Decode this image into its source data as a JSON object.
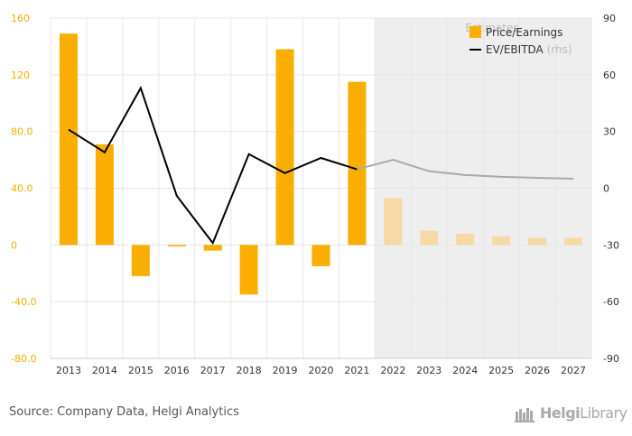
{
  "chart_data": {
    "type": "bar",
    "categories": [
      "2013",
      "2014",
      "2015",
      "2016",
      "2017",
      "2018",
      "2019",
      "2020",
      "2021",
      "2022",
      "2023",
      "2024",
      "2025",
      "2026",
      "2027"
    ],
    "estimates_start_index": 9,
    "estimates_label": "Estimates",
    "series": [
      {
        "name": "Price/Earnings",
        "type": "bar",
        "axis": "left",
        "color": "#f9ae00",
        "estimate_color": "#f6d9a4",
        "values": [
          149,
          71,
          -22,
          -1,
          -4,
          -35,
          138,
          -15,
          115,
          33,
          10,
          8,
          6,
          5,
          5
        ]
      },
      {
        "name": "EV/EBITDA",
        "name_suffix": "(rhs)",
        "type": "line",
        "axis": "right",
        "color": "#000000",
        "estimate_color": "#a9a9a9",
        "values": [
          31,
          19,
          53,
          -4,
          -29,
          18,
          8,
          16,
          10,
          15,
          9,
          7,
          6,
          5.5,
          5
        ]
      }
    ],
    "y_left": {
      "min": -80,
      "max": 160,
      "ticks": [
        "160",
        "120",
        "80.0",
        "40.0",
        "0",
        "-40.0",
        "-80.0"
      ]
    },
    "y_right": {
      "min": -90,
      "max": 90,
      "ticks": [
        "90",
        "60",
        "30",
        "0",
        "-30",
        "-60",
        "-90"
      ]
    },
    "legend_position": "top-right",
    "colors": {
      "left_axis": "#f9ae00",
      "estimate_band": "#eeeeee",
      "grid": "#e6e6e6"
    }
  },
  "footer": {
    "source": "Source: Company Data, Helgi Analytics",
    "logo_part1": "Helgi",
    "logo_part2": "Library"
  }
}
